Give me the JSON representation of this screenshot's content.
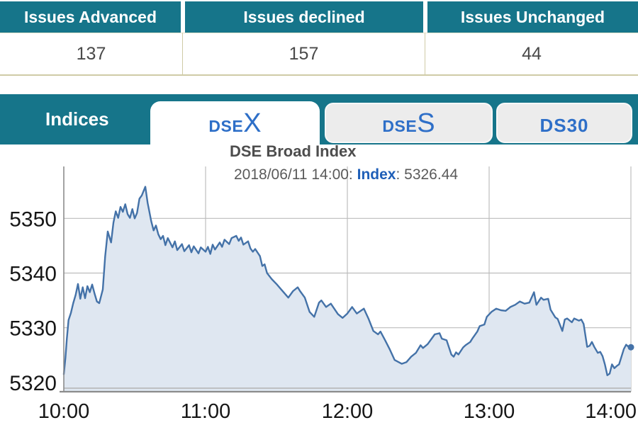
{
  "issues_table": {
    "columns": [
      {
        "label": "Issues Advanced",
        "value": "137"
      },
      {
        "label": "Issues declined",
        "value": "157"
      },
      {
        "label": "Issues Unchanged",
        "value": "44"
      }
    ]
  },
  "tabs": {
    "group_label": "Indices",
    "items": [
      {
        "id": "dsex",
        "prefix": "DSE",
        "suffix": "X",
        "active": true
      },
      {
        "id": "dses",
        "prefix": "DSE",
        "suffix": "S",
        "active": false
      },
      {
        "id": "ds30",
        "prefix": "DS30",
        "suffix": "",
        "active": false
      }
    ]
  },
  "chart": {
    "title": "DSE Broad Index",
    "tooltip": {
      "datetime_part": "2018/06/11 14:00: ",
      "label": "Index",
      "value_part": ": 5326.44"
    }
  },
  "chart_data": {
    "type": "area",
    "title": "DSE Broad Index",
    "series_name": "Index",
    "date": "2018/06/11",
    "last_value": 5326.44,
    "x_unit": "minutes since 10:00",
    "xlim": [
      0,
      240
    ],
    "ylim": [
      5318.3,
      5359.5
    ],
    "xticks": [
      0,
      60,
      120,
      180,
      240
    ],
    "xticklabels": [
      "10:00",
      "11:00",
      "12:00",
      "13:00",
      "14:00"
    ],
    "yticks": [
      5320,
      5330,
      5340,
      5350
    ],
    "yticklabels": [
      "5320",
      "5330",
      "5340",
      "5350"
    ],
    "grid": true,
    "legend": false,
    "colors": {
      "line": "#4472a8",
      "fill": "#dfe7f1",
      "grid": "#bdbdbd",
      "axis": "#8c8c8c",
      "sub_axis": "#b3b3b3",
      "tick_text": "#161616"
    },
    "points": [
      [
        0,
        5321.5
      ],
      [
        0.7,
        5324.5
      ],
      [
        1.3,
        5328
      ],
      [
        2,
        5331.4
      ],
      [
        3,
        5332.7
      ],
      [
        4,
        5334.5
      ],
      [
        5,
        5336
      ],
      [
        6,
        5338
      ],
      [
        7,
        5335.3
      ],
      [
        8,
        5337.4
      ],
      [
        9,
        5335.4
      ],
      [
        10,
        5337.6
      ],
      [
        11,
        5336.5
      ],
      [
        12,
        5337.9
      ],
      [
        13,
        5336.3
      ],
      [
        14,
        5334.8
      ],
      [
        15,
        5334.5
      ],
      [
        16.5,
        5337
      ],
      [
        17.5,
        5343
      ],
      [
        18.6,
        5347.6
      ],
      [
        20,
        5345.6
      ],
      [
        21,
        5349.2
      ],
      [
        22,
        5351.3
      ],
      [
        23,
        5350.1
      ],
      [
        24,
        5352.1
      ],
      [
        25,
        5351.2
      ],
      [
        26,
        5352.6
      ],
      [
        27,
        5350.8
      ],
      [
        28,
        5350.1
      ],
      [
        29,
        5351.7
      ],
      [
        30,
        5350
      ],
      [
        31,
        5351
      ],
      [
        32,
        5353.6
      ],
      [
        33,
        5354.2
      ],
      [
        34.5,
        5355.8
      ],
      [
        35.5,
        5352.8
      ],
      [
        36,
        5351.7
      ],
      [
        37,
        5349.5
      ],
      [
        38,
        5347.8
      ],
      [
        39,
        5348.7
      ],
      [
        40,
        5347.1
      ],
      [
        41,
        5346.2
      ],
      [
        42,
        5346.8
      ],
      [
        43,
        5345.1
      ],
      [
        44,
        5346.4
      ],
      [
        46,
        5344.7
      ],
      [
        47,
        5345.8
      ],
      [
        48,
        5344.2
      ],
      [
        50,
        5345.3
      ],
      [
        51,
        5344
      ],
      [
        53,
        5345.1
      ],
      [
        54,
        5343.8
      ],
      [
        55,
        5344.9
      ],
      [
        57,
        5343.6
      ],
      [
        58,
        5344.7
      ],
      [
        60,
        5343.9
      ],
      [
        61,
        5344.8
      ],
      [
        62,
        5343.5
      ],
      [
        63,
        5345.2
      ],
      [
        64,
        5344.3
      ],
      [
        66,
        5345.6
      ],
      [
        67,
        5344.8
      ],
      [
        68,
        5346.1
      ],
      [
        70,
        5345.3
      ],
      [
        71,
        5346.4
      ],
      [
        73,
        5346.8
      ],
      [
        74,
        5345.9
      ],
      [
        75,
        5346.5
      ],
      [
        76,
        5345.2
      ],
      [
        78,
        5345.8
      ],
      [
        79,
        5344.5
      ],
      [
        80,
        5343.9
      ],
      [
        81,
        5344.4
      ],
      [
        83,
        5343.1
      ],
      [
        84,
        5341.3
      ],
      [
        85,
        5341.6
      ],
      [
        86,
        5340
      ],
      [
        88,
        5338.9
      ],
      [
        90,
        5338
      ],
      [
        92,
        5337
      ],
      [
        95,
        5335.5
      ],
      [
        97,
        5336.7
      ],
      [
        99,
        5337.4
      ],
      [
        100,
        5336.7
      ],
      [
        102,
        5335.5
      ],
      [
        104,
        5332.9
      ],
      [
        106,
        5332
      ],
      [
        108,
        5334.6
      ],
      [
        109,
        5335
      ],
      [
        111,
        5333.8
      ],
      [
        113,
        5334.4
      ],
      [
        116,
        5332.5
      ],
      [
        118,
        5331.8
      ],
      [
        120,
        5332.6
      ],
      [
        122,
        5333.8
      ],
      [
        124,
        5332.6
      ],
      [
        127,
        5333.5
      ],
      [
        129,
        5331.6
      ],
      [
        131,
        5329.4
      ],
      [
        133,
        5328.8
      ],
      [
        134,
        5329.3
      ],
      [
        136,
        5327.7
      ],
      [
        138,
        5326
      ],
      [
        140,
        5324.1
      ],
      [
        143,
        5323.4
      ],
      [
        145,
        5323.7
      ],
      [
        147,
        5324.7
      ],
      [
        149,
        5325.4
      ],
      [
        151,
        5326.8
      ],
      [
        152,
        5326.3
      ],
      [
        154,
        5327
      ],
      [
        157,
        5328.8
      ],
      [
        159,
        5329
      ],
      [
        160,
        5328
      ],
      [
        162,
        5327.7
      ],
      [
        164,
        5325.1
      ],
      [
        165,
        5324.7
      ],
      [
        166,
        5325.5
      ],
      [
        167,
        5325.1
      ],
      [
        169,
        5326.4
      ],
      [
        170,
        5326.8
      ],
      [
        172,
        5327.4
      ],
      [
        173,
        5328.1
      ],
      [
        175,
        5329.3
      ],
      [
        176,
        5330.3
      ],
      [
        178,
        5330.6
      ],
      [
        179,
        5332
      ],
      [
        181,
        5332.9
      ],
      [
        183,
        5333.5
      ],
      [
        185,
        5333.2
      ],
      [
        187,
        5333.1
      ],
      [
        189,
        5333.8
      ],
      [
        191,
        5334.2
      ],
      [
        193,
        5334.8
      ],
      [
        195,
        5334.4
      ],
      [
        197,
        5334.6
      ],
      [
        199,
        5336.5
      ],
      [
        200,
        5334.2
      ],
      [
        202,
        5335.5
      ],
      [
        203,
        5335.1
      ],
      [
        205,
        5335.3
      ],
      [
        206,
        5333.3
      ],
      [
        208,
        5331.9
      ],
      [
        209,
        5331.6
      ],
      [
        211,
        5329.4
      ],
      [
        212,
        5331.5
      ],
      [
        213,
        5331.7
      ],
      [
        215,
        5331
      ],
      [
        216,
        5331.7
      ],
      [
        218,
        5331.3
      ],
      [
        219,
        5331.5
      ],
      [
        220,
        5330.7
      ],
      [
        221.5,
        5326.5
      ],
      [
        222.5,
        5326.7
      ],
      [
        223.5,
        5327.4
      ],
      [
        224.5,
        5326.5
      ],
      [
        226,
        5325.4
      ],
      [
        227,
        5325.6
      ],
      [
        228,
        5324.8
      ],
      [
        229,
        5323.3
      ],
      [
        230,
        5321.3
      ],
      [
        231,
        5321.6
      ],
      [
        232,
        5323.3
      ],
      [
        233,
        5322.6
      ],
      [
        234,
        5323
      ],
      [
        235,
        5323.3
      ],
      [
        237,
        5326.1
      ],
      [
        238,
        5326.9
      ],
      [
        239,
        5326.5
      ],
      [
        240,
        5326.44
      ]
    ]
  }
}
